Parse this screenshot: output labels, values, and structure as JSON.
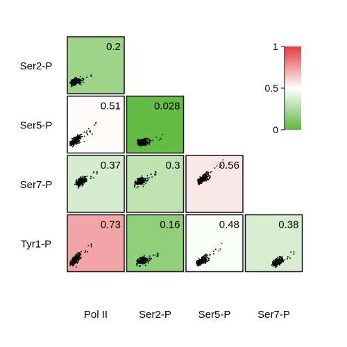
{
  "chart_data": {
    "type": "heatmap",
    "layout": "lower-triangular correlation matrix with scatter plots in each cell",
    "row_labels": [
      "Ser2-P",
      "Ser5-P",
      "Ser7-P",
      "Tyr1-P"
    ],
    "col_labels": [
      "Pol II",
      "Ser2-P",
      "Ser5-P",
      "Ser7-P"
    ],
    "cells": [
      {
        "row": "Ser2-P",
        "col": "Pol II",
        "value": 0.2,
        "label": "0.2",
        "cluster": "bottom-left"
      },
      {
        "row": "Ser5-P",
        "col": "Pol II",
        "value": 0.51,
        "label": "0.51",
        "cluster": "bottom-left"
      },
      {
        "row": "Ser5-P",
        "col": "Ser2-P",
        "value": 0.028,
        "label": "0.028",
        "cluster": "bottom"
      },
      {
        "row": "Ser7-P",
        "col": "Pol II",
        "value": 0.37,
        "label": "0.37",
        "cluster": "left"
      },
      {
        "row": "Ser7-P",
        "col": "Ser2-P",
        "value": 0.3,
        "label": "0.3",
        "cluster": "left"
      },
      {
        "row": "Ser7-P",
        "col": "Ser5-P",
        "value": 0.56,
        "label": "0.56",
        "cluster": "upper-left"
      },
      {
        "row": "Tyr1-P",
        "col": "Pol II",
        "value": 0.73,
        "label": "0.73",
        "cluster": "bottom-left"
      },
      {
        "row": "Tyr1-P",
        "col": "Ser2-P",
        "value": 0.16,
        "label": "0.16",
        "cluster": "bottom"
      },
      {
        "row": "Tyr1-P",
        "col": "Ser5-P",
        "value": 0.48,
        "label": "0.48",
        "cluster": "bottom"
      },
      {
        "row": "Tyr1-P",
        "col": "Ser7-P",
        "value": 0.38,
        "label": "0.38",
        "cluster": "bottom-right"
      }
    ],
    "colorbar": {
      "range": [
        0,
        1
      ],
      "ticks": [
        "0",
        "0.5",
        "1"
      ],
      "colors": {
        "low": "#5cb83a",
        "mid": "#ffffff",
        "high": "#e23b40"
      }
    },
    "grid": false,
    "legend": "top-right colorbar"
  }
}
